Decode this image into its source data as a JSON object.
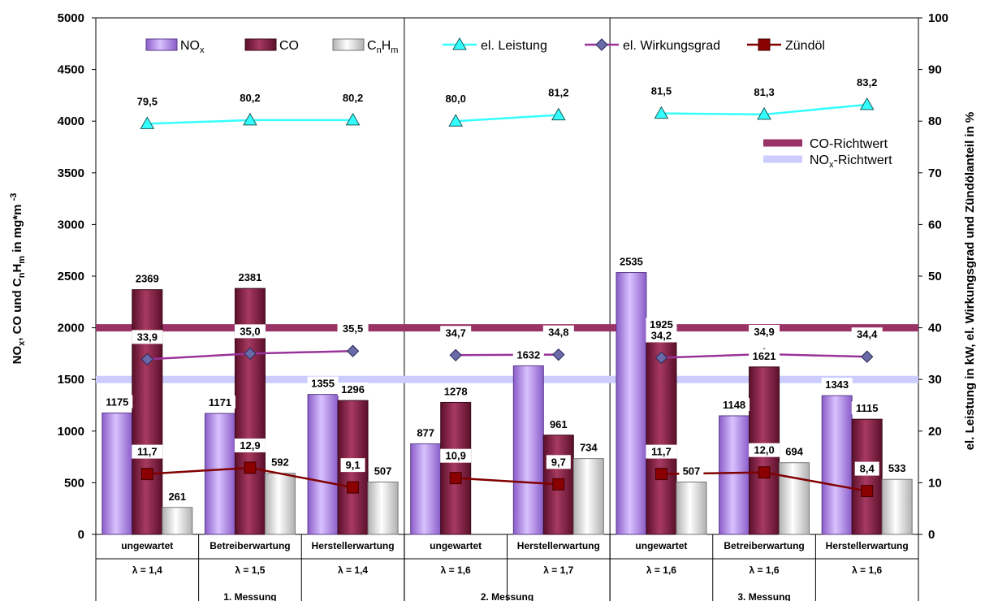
{
  "chart_data": {
    "type": "bar",
    "ylabel_left": "NOx, CO und CnHm in mg*m -3",
    "ylabel_right": "el. Leistung in kW, el. Wirkungsgrad und Zündölanteil in %",
    "ylim_left": [
      0,
      5000
    ],
    "ylim_right": [
      0,
      100
    ],
    "yticks_left": [
      "0",
      "500",
      "1000",
      "1500",
      "2000",
      "2500",
      "3000",
      "3500",
      "4000",
      "4500",
      "5000"
    ],
    "yticks_right": [
      "0",
      "10",
      "20",
      "30",
      "40",
      "50",
      "60",
      "70",
      "80",
      "90",
      "100"
    ],
    "categories": [
      {
        "name": "ungewartet",
        "lambda": "λ = 1,4"
      },
      {
        "name": "Betreiberwartung",
        "lambda": "λ = 1,5"
      },
      {
        "name": "Herstellerwartung",
        "lambda": "λ = 1,4"
      },
      {
        "name": "ungewartet",
        "lambda": "λ = 1,6"
      },
      {
        "name": "Herstellerwartung",
        "lambda": "λ = 1,7"
      },
      {
        "name": "ungewartet",
        "lambda": "λ = 1,6"
      },
      {
        "name": "Betreiberwartung",
        "lambda": "λ = 1,6"
      },
      {
        "name": "Herstellerwartung",
        "lambda": "λ = 1,6"
      }
    ],
    "groups": [
      {
        "label": "1. Messung",
        "span": 3
      },
      {
        "label": "2. Messung",
        "span": 2
      },
      {
        "label": "3. Messung",
        "span": 3
      }
    ],
    "bar_series": [
      {
        "name": "NOx",
        "values": [
          1175,
          1171,
          1355,
          877,
          1632,
          2535,
          1148,
          1343
        ],
        "labels": [
          "1175",
          "1171",
          "1355",
          "877",
          "1632",
          "2535",
          "1148",
          "1343"
        ]
      },
      {
        "name": "CO",
        "values": [
          2369,
          2381,
          1296,
          1278,
          961,
          1925,
          1621,
          1115
        ],
        "labels": [
          "2369",
          "2381",
          "1296",
          "1278",
          "961",
          "1925",
          "1621",
          "1115"
        ]
      },
      {
        "name": "CnHm",
        "values": [
          261,
          592,
          507,
          null,
          734,
          507,
          694,
          533
        ],
        "labels": [
          "261",
          "592",
          "507",
          "",
          "734",
          "507",
          "694",
          "533"
        ]
      }
    ],
    "line_series": [
      {
        "name": "el. Leistung",
        "values": [
          79.5,
          80.2,
          80.2,
          80.0,
          81.2,
          81.5,
          81.3,
          83.2
        ],
        "labels": [
          "79,5",
          "80,2",
          "80,2",
          "80,0",
          "81,2",
          "81,5",
          "81,3",
          "83,2"
        ]
      },
      {
        "name": "el. Wirkungsgrad",
        "values": [
          33.9,
          35.0,
          35.5,
          34.7,
          34.8,
          34.2,
          34.9,
          34.4
        ],
        "labels": [
          "33,9",
          "35,0",
          "35,5",
          "34,7",
          "34,8",
          "34,2",
          "34,9",
          "34,4"
        ]
      },
      {
        "name": "Zündöl",
        "values": [
          11.7,
          12.9,
          9.1,
          10.9,
          9.7,
          11.7,
          12.0,
          8.4
        ],
        "labels": [
          "11,7",
          "12,9",
          "9,1",
          "10,9",
          "9,7",
          "11,7",
          "12,0",
          "8,4"
        ]
      }
    ],
    "reference_lines": [
      {
        "name": "CO-Richtwert",
        "value": 2000,
        "color": "#993366"
      },
      {
        "name": "NOx-Richtwert",
        "value": 1500,
        "color": "#ccccff"
      }
    ],
    "legend": {
      "top": [
        {
          "key": "NOx",
          "main": "NO",
          "sub": "x"
        },
        {
          "key": "CO",
          "main": "CO",
          "sub": ""
        },
        {
          "key": "CnHm",
          "main": "C",
          "sub": "n",
          "main2": "H",
          "sub2": "m"
        },
        {
          "key": "el. Leistung",
          "main": "el. Leistung",
          "sub": ""
        },
        {
          "key": "el. Wirkungsgrad",
          "main": "el. Wirkungsgrad",
          "sub": ""
        },
        {
          "key": "Zündöl",
          "main": "Zündöl",
          "sub": ""
        }
      ],
      "right": [
        {
          "key": "CO-Richtwert",
          "main": "CO-Richtwert",
          "sub": "",
          "after": ""
        },
        {
          "key": "NOx-Richtwert",
          "main": "NO",
          "sub": "x",
          "after": "-Richtwert"
        }
      ]
    },
    "colors": {
      "nox": "#b48ae6",
      "co": "#7a1f3d",
      "cnhm": "#e6e6e6",
      "leistung": "#33ffff",
      "wirkungsgrad": "#993399",
      "zuendoel": "#800000",
      "co_ref": "#993366",
      "nox_ref": "#ccccff"
    }
  }
}
